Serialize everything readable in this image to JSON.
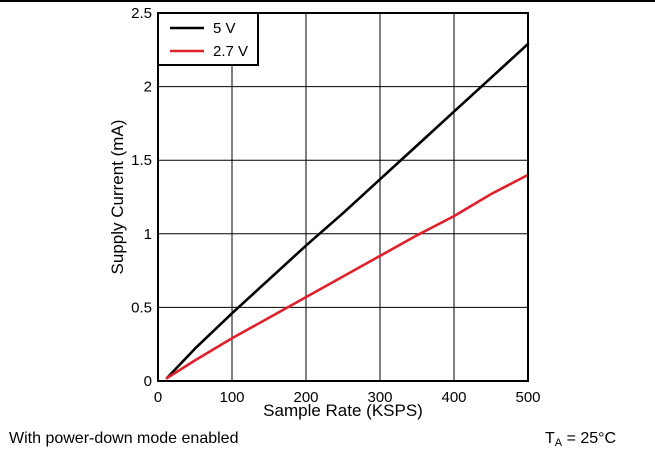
{
  "chart_data": {
    "type": "line",
    "xlabel": "Sample Rate (KSPS)",
    "ylabel": "Supply Current (mA)",
    "xlim": [
      0,
      500
    ],
    "ylim": [
      0,
      2.5
    ],
    "xticks": [
      "0",
      "100",
      "200",
      "300",
      "400",
      "500"
    ],
    "yticks": [
      "0",
      "0.5",
      "1",
      "1.5",
      "2",
      "2.5"
    ],
    "grid": true,
    "legend_position": "top-left",
    "series": [
      {
        "name": "5 V",
        "color": "#000000",
        "x": [
          12,
          50,
          100,
          150,
          200,
          250,
          300,
          350,
          400,
          450,
          500
        ],
        "y": [
          0.02,
          0.22,
          0.46,
          0.69,
          0.92,
          1.14,
          1.37,
          1.6,
          1.83,
          2.06,
          2.29
        ]
      },
      {
        "name": "2.7 V",
        "color": "#e0202a",
        "x": [
          12,
          50,
          100,
          150,
          200,
          250,
          300,
          350,
          400,
          450,
          500
        ],
        "y": [
          0.02,
          0.14,
          0.29,
          0.43,
          0.57,
          0.71,
          0.85,
          0.99,
          1.12,
          1.27,
          1.4
        ]
      }
    ]
  },
  "footer": {
    "note": "With power-down mode enabled",
    "temp_symbol": "T",
    "temp_subscript": "A",
    "temp_value": " = 25°C"
  }
}
